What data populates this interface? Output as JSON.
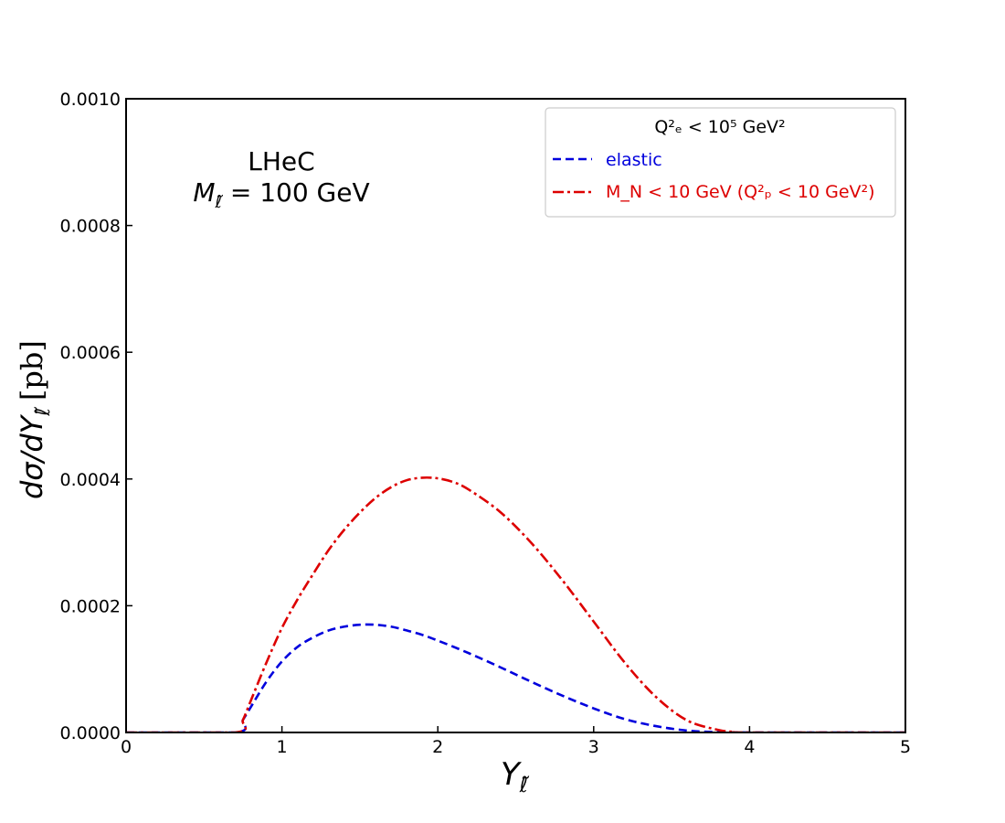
{
  "chart_data": {
    "type": "line",
    "xlim": [
      0,
      5
    ],
    "ylim": [
      0,
      0.001
    ],
    "x_ticks": [
      "0",
      "1",
      "2",
      "3",
      "4",
      "5"
    ],
    "y_ticks": [
      "0.0000",
      "0.0002",
      "0.0004",
      "0.0006",
      "0.0008",
      "0.0010"
    ],
    "xlabel": "Y",
    "xlabel_sub": "ℓ̃",
    "ylabel": "dσ/dY",
    "ylabel_sub": "ℓ̃",
    "ylabel_unit": "[pb]",
    "annotation_line1": "LHeC",
    "annotation_line2_main": "M",
    "annotation_line2_sub": "ℓ̃",
    "annotation_line2_rest": " = 100 GeV",
    "legend": {
      "title": "Q²ₑ < 10⁵ GeV²",
      "position": "top-right",
      "entries": [
        "elastic",
        "M_N < 10 GeV (Q²ₚ < 10 GeV²)"
      ]
    },
    "grid": false,
    "series": [
      {
        "name": "elastic",
        "color": "#0000dd",
        "style": "dashed",
        "x": [
          0,
          0.7,
          0.75,
          0.8,
          0.9,
          1.0,
          1.1,
          1.2,
          1.3,
          1.4,
          1.5,
          1.6,
          1.7,
          1.8,
          1.9,
          2.0,
          2.2,
          2.4,
          2.6,
          2.8,
          3.0,
          3.2,
          3.4,
          3.6,
          3.8,
          4.0,
          5.0
        ],
        "y": [
          0,
          0,
          2e-05,
          4e-05,
          8e-05,
          0.000112,
          0.000135,
          0.00015,
          0.000161,
          0.000167,
          0.00017,
          0.00017,
          0.000167,
          0.000161,
          0.000154,
          0.000145,
          0.000125,
          0.000103,
          8e-05,
          5.8e-05,
          3.8e-05,
          2.1e-05,
          1e-05,
          3e-06,
          5e-07,
          0,
          0
        ]
      },
      {
        "name": "M_N < 10 GeV (Q²ₚ < 10 GeV²)",
        "color": "#dd0000",
        "style": "dashdot",
        "x": [
          0,
          0.7,
          0.75,
          0.8,
          0.9,
          1.0,
          1.1,
          1.2,
          1.3,
          1.4,
          1.5,
          1.6,
          1.7,
          1.8,
          1.9,
          2.0,
          2.1,
          2.2,
          2.4,
          2.6,
          2.8,
          3.0,
          3.2,
          3.4,
          3.6,
          3.8,
          3.9,
          4.0,
          5.0
        ],
        "y": [
          0,
          0,
          2e-05,
          5e-05,
          0.00011,
          0.000165,
          0.00021,
          0.00025,
          0.000288,
          0.00032,
          0.000347,
          0.00037,
          0.000387,
          0.000398,
          0.000402,
          0.000401,
          0.000395,
          0.000383,
          0.000348,
          0.000299,
          0.00024,
          0.000175,
          0.00011,
          5.6e-05,
          1.9e-05,
          4e-06,
          1e-06,
          0,
          0
        ]
      }
    ]
  }
}
